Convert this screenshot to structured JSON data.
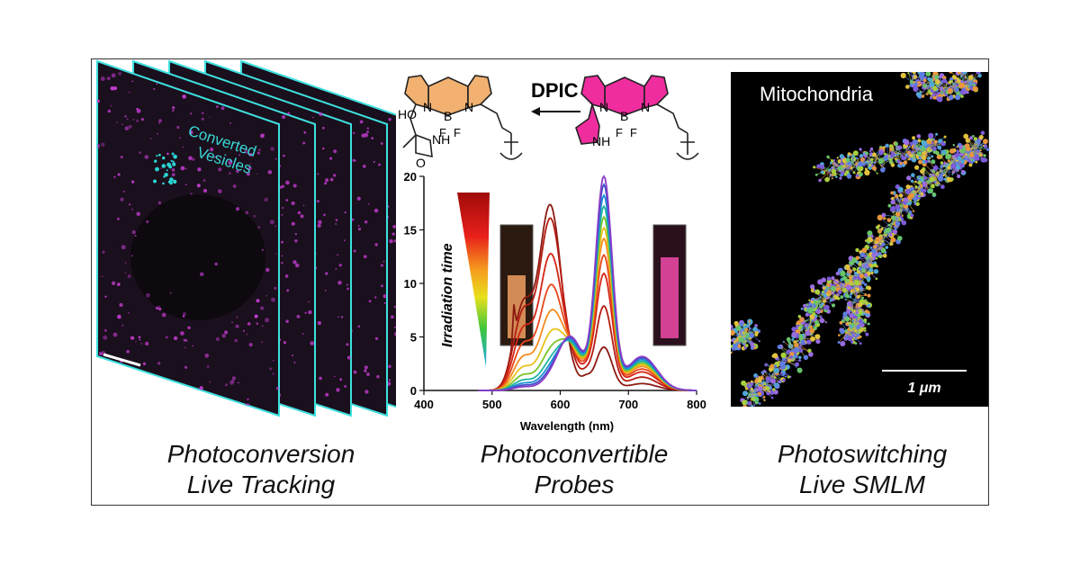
{
  "captions": {
    "left": [
      "Photoconversion",
      "Live Tracking"
    ],
    "middle": [
      "Photoconvertible",
      "Probes"
    ],
    "right": [
      "Photoswitching",
      "Live SMLM"
    ]
  },
  "left_panel": {
    "label_line1": "Converted",
    "label_line2": "Vesicles",
    "accent": "#2ad4d4",
    "signal_color": "#c23bd0"
  },
  "scheme": {
    "reaction_label": "DPIC",
    "left_dye": {
      "atoms": [
        "N",
        "B",
        "N",
        "F",
        "F",
        "HO",
        "NH",
        "O"
      ],
      "color": "#f2b170"
    },
    "right_dye": {
      "atoms": [
        "N",
        "B",
        "N",
        "F",
        "F",
        "NH"
      ],
      "color": "#f02d9e"
    }
  },
  "right_panel": {
    "title": "Mitochondria",
    "scale_label": "1 μm"
  },
  "chart_data": {
    "type": "line",
    "xlabel": "Wavelength (nm)",
    "ylabel": "",
    "xlim": [
      400,
      800
    ],
    "ylim": [
      0,
      20
    ],
    "x_ticks": [
      400,
      500,
      600,
      700,
      800
    ],
    "y_ticks": [
      0,
      5,
      10,
      15,
      20
    ],
    "annotation": "Irradiation time",
    "series_peak_values": [
      {
        "color": "#8b1a12",
        "at_585nm": 17.0,
        "at_664nm": 4.0
      },
      {
        "color": "#b51c12",
        "at_585nm": 15.5,
        "at_664nm": 7.8
      },
      {
        "color": "#d42516",
        "at_585nm": 12.0,
        "at_664nm": 10.8
      },
      {
        "color": "#e8471a",
        "at_585nm": 9.0,
        "at_664nm": 12.5
      },
      {
        "color": "#f58b1e",
        "at_585nm": 6.5,
        "at_664nm": 14.0
      },
      {
        "color": "#e8c21c",
        "at_585nm": 4.5,
        "at_664nm": 15.0
      },
      {
        "color": "#7bc42a",
        "at_585nm": 3.0,
        "at_664nm": 16.0
      },
      {
        "color": "#20b6a0",
        "at_585nm": 2.0,
        "at_664nm": 17.0
      },
      {
        "color": "#1a8fd8",
        "at_585nm": 1.4,
        "at_664nm": 18.0
      },
      {
        "color": "#3d52c8",
        "at_585nm": 1.0,
        "at_664nm": 19.0
      },
      {
        "color": "#8a3cc8",
        "at_585nm": 0.7,
        "at_664nm": 19.8
      }
    ]
  }
}
